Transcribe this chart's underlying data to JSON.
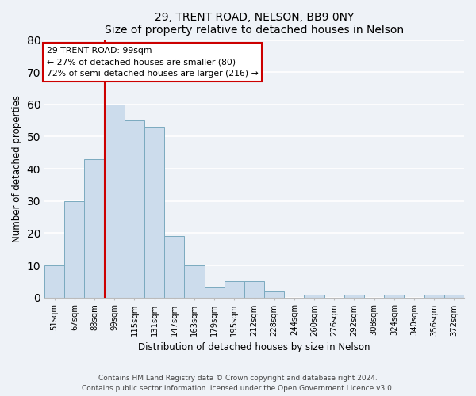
{
  "title": "29, TRENT ROAD, NELSON, BB9 0NY",
  "subtitle": "Size of property relative to detached houses in Nelson",
  "xlabel": "Distribution of detached houses by size in Nelson",
  "ylabel": "Number of detached properties",
  "bin_labels": [
    "51sqm",
    "67sqm",
    "83sqm",
    "99sqm",
    "115sqm",
    "131sqm",
    "147sqm",
    "163sqm",
    "179sqm",
    "195sqm",
    "212sqm",
    "228sqm",
    "244sqm",
    "260sqm",
    "276sqm",
    "292sqm",
    "308sqm",
    "324sqm",
    "340sqm",
    "356sqm",
    "372sqm"
  ],
  "bar_heights": [
    10,
    30,
    43,
    60,
    55,
    53,
    19,
    10,
    3,
    5,
    5,
    2,
    0,
    1,
    0,
    1,
    0,
    1,
    0,
    1,
    1
  ],
  "bar_color": "#ccdcec",
  "bar_edge_color": "#7aaabf",
  "vline_x_index": 3,
  "vline_color": "#cc0000",
  "ylim": [
    0,
    80
  ],
  "yticks": [
    0,
    10,
    20,
    30,
    40,
    50,
    60,
    70,
    80
  ],
  "annotation_title": "29 TRENT ROAD: 99sqm",
  "annotation_line1": "← 27% of detached houses are smaller (80)",
  "annotation_line2": "72% of semi-detached houses are larger (216) →",
  "annotation_box_color": "#ffffff",
  "annotation_box_edge": "#cc0000",
  "footer_line1": "Contains HM Land Registry data © Crown copyright and database right 2024.",
  "footer_line2": "Contains public sector information licensed under the Open Government Licence v3.0.",
  "background_color": "#eef2f7",
  "grid_color": "#ffffff",
  "figwidth": 6.0,
  "figheight": 5.0,
  "dpi": 100
}
